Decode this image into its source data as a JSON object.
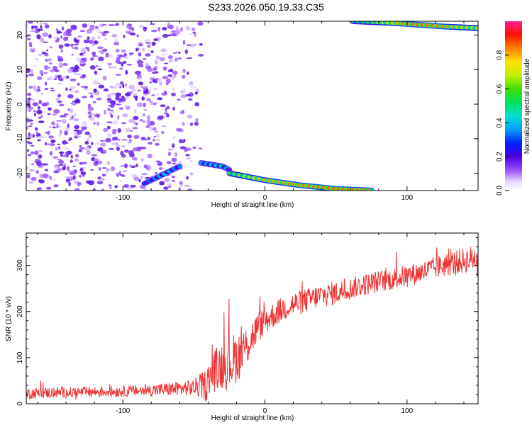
{
  "figure_title": "S233.2026.050.19.33.C35",
  "chart_data": [
    {
      "type": "heatmap",
      "title": "S233.2026.050.19.33.C35",
      "xlabel": "Height of straight line (km)",
      "ylabel": "Frequency (Hz)",
      "xlim": [
        -168,
        150
      ],
      "ylim": [
        -25,
        24
      ],
      "xticks": [
        -100,
        0,
        100
      ],
      "yticks": [
        -20,
        -10,
        0,
        10,
        20
      ],
      "grid": false,
      "colorbar": {
        "label": "Normalized spectral amplitude",
        "range": [
          0,
          1
        ],
        "ticks": [
          0.0,
          0.2,
          0.4,
          0.6,
          0.8
        ],
        "colormap": "rainbow (white-violet-blue-cyan-green-yellow-red)"
      },
      "features": [
        {
          "description": "low-amplitude speckle",
          "x_range": [
            -168,
            -45
          ],
          "frequency_range": [
            -25,
            24
          ],
          "amplitude": [
            0.05,
            0.2
          ]
        },
        {
          "description": "bright tonal segment rising",
          "x": [
            -85,
            -70,
            -60
          ],
          "frequency": [
            -23,
            -20,
            -18
          ],
          "amplitude": [
            0.3,
            0.45,
            0.35
          ]
        },
        {
          "description": "bright tonal segment",
          "x": [
            -45,
            -30,
            -25
          ],
          "frequency": [
            -17,
            -18,
            -19
          ],
          "amplitude": [
            0.4,
            0.5,
            0.35
          ]
        },
        {
          "description": "dominant descending tone",
          "x": [
            -25,
            0,
            25,
            50,
            75
          ],
          "frequency": [
            -20,
            -22,
            -23.5,
            -24.5,
            -25
          ],
          "amplitude": [
            0.6,
            0.85,
            0.9,
            0.95,
            0.9
          ]
        },
        {
          "description": "upper tone near Nyquist",
          "x": [
            62,
            90,
            100,
            125,
            150
          ],
          "frequency": [
            24,
            23.5,
            23.2,
            22.5,
            22
          ],
          "amplitude": [
            0.5,
            0.8,
            0.95,
            0.9,
            0.7
          ]
        }
      ]
    },
    {
      "type": "line",
      "xlabel": "Height of straight line (km)",
      "ylabel": "SNR (10 * v/v)",
      "xlim": [
        -168,
        150
      ],
      "ylim": [
        0,
        370
      ],
      "xticks": [
        -100,
        0,
        100
      ],
      "yticks": [
        0,
        100,
        200,
        300
      ],
      "grid": false,
      "color": "#ee3333",
      "series": [
        {
          "x": [
            -168,
            -150,
            -125,
            -100,
            -75,
            -60,
            -50,
            -42,
            -36,
            -30,
            -25,
            -20,
            -15,
            -10,
            -5,
            0,
            5,
            10,
            15,
            20,
            30,
            40,
            50,
            60,
            75,
            90,
            100,
            110,
            125,
            140,
            150
          ],
          "values": [
            22,
            24,
            25,
            27,
            30,
            33,
            35,
            40,
            70,
            85,
            90,
            100,
            115,
            140,
            165,
            180,
            190,
            200,
            210,
            215,
            225,
            235,
            240,
            250,
            262,
            270,
            278,
            285,
            300,
            310,
            318
          ],
          "spread": [
            12,
            12,
            12,
            12,
            14,
            16,
            18,
            35,
            45,
            55,
            60,
            55,
            50,
            40,
            35,
            30,
            28,
            28,
            28,
            28,
            26,
            26,
            26,
            24,
            24,
            24,
            24,
            24,
            26,
            28,
            30
          ]
        }
      ]
    }
  ]
}
